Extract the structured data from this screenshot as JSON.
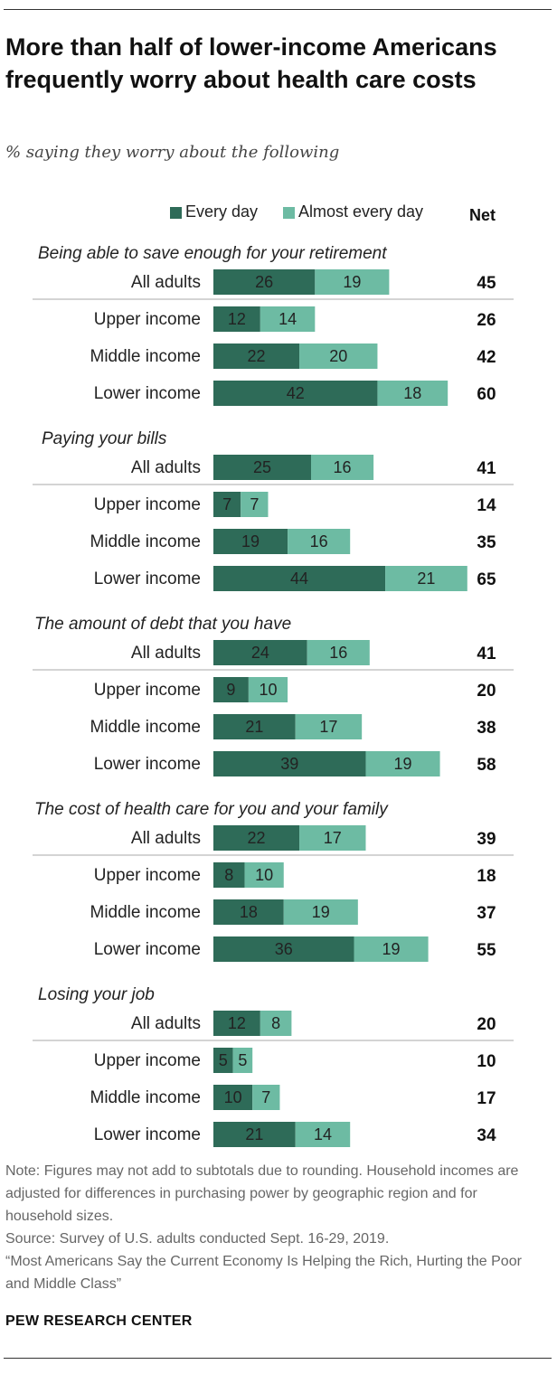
{
  "title": "More than half of lower-income Americans frequently worry about health care costs",
  "subtitle": "% saying they worry about the following",
  "legend": {
    "every_day": "Every day",
    "almost_every_day": "Almost every day",
    "net": "Net"
  },
  "colors": {
    "every_day": "#2e6b58",
    "almost_every_day": "#6dbba3",
    "rule": "#333333",
    "separator": "#aaaaaa"
  },
  "chart_data": {
    "type": "bar",
    "orientation": "horizontal",
    "stacked": true,
    "series_names": [
      "Every day",
      "Almost every day"
    ],
    "net_label": "Net",
    "categories": [
      {
        "name": "Being able to save enough for your retirement",
        "rows": [
          {
            "label": "All adults",
            "every_day": 26,
            "almost_every_day": 19,
            "net": 45
          },
          {
            "label": "Upper income",
            "every_day": 12,
            "almost_every_day": 14,
            "net": 26
          },
          {
            "label": "Middle income",
            "every_day": 22,
            "almost_every_day": 20,
            "net": 42
          },
          {
            "label": "Lower income",
            "every_day": 42,
            "almost_every_day": 18,
            "net": 60
          }
        ]
      },
      {
        "name": "Paying your bills",
        "rows": [
          {
            "label": "All adults",
            "every_day": 25,
            "almost_every_day": 16,
            "net": 41
          },
          {
            "label": "Upper income",
            "every_day": 7,
            "almost_every_day": 7,
            "net": 14
          },
          {
            "label": "Middle income",
            "every_day": 19,
            "almost_every_day": 16,
            "net": 35
          },
          {
            "label": "Lower income",
            "every_day": 44,
            "almost_every_day": 21,
            "net": 65
          }
        ]
      },
      {
        "name": "The amount of debt that you have",
        "rows": [
          {
            "label": "All adults",
            "every_day": 24,
            "almost_every_day": 16,
            "net": 41
          },
          {
            "label": "Upper income",
            "every_day": 9,
            "almost_every_day": 10,
            "net": 20
          },
          {
            "label": "Middle income",
            "every_day": 21,
            "almost_every_day": 17,
            "net": 38
          },
          {
            "label": "Lower income",
            "every_day": 39,
            "almost_every_day": 19,
            "net": 58
          }
        ]
      },
      {
        "name": "The cost of health care for you and your family",
        "rows": [
          {
            "label": "All adults",
            "every_day": 22,
            "almost_every_day": 17,
            "net": 39
          },
          {
            "label": "Upper income",
            "every_day": 8,
            "almost_every_day": 10,
            "net": 18
          },
          {
            "label": "Middle income",
            "every_day": 18,
            "almost_every_day": 19,
            "net": 37
          },
          {
            "label": "Lower income",
            "every_day": 36,
            "almost_every_day": 19,
            "net": 55
          }
        ]
      },
      {
        "name": "Losing your job",
        "rows": [
          {
            "label": "All adults",
            "every_day": 12,
            "almost_every_day": 8,
            "net": 20
          },
          {
            "label": "Upper income",
            "every_day": 5,
            "almost_every_day": 5,
            "net": 10
          },
          {
            "label": "Middle income",
            "every_day": 10,
            "almost_every_day": 7,
            "net": 17
          },
          {
            "label": "Lower income",
            "every_day": 21,
            "almost_every_day": 14,
            "net": 34
          }
        ]
      }
    ]
  },
  "notes": {
    "note": "Note: Figures may not add to subtotals due to rounding. Household incomes are adjusted for differences in purchasing power by geographic region and for household sizes.",
    "source": "Source: Survey of U.S. adults conducted Sept. 16-29, 2019.",
    "report": "“Most Americans Say the Current Economy Is Helping the Rich, Hurting the Poor and Middle Class”"
  },
  "brand": "PEW RESEARCH CENTER"
}
